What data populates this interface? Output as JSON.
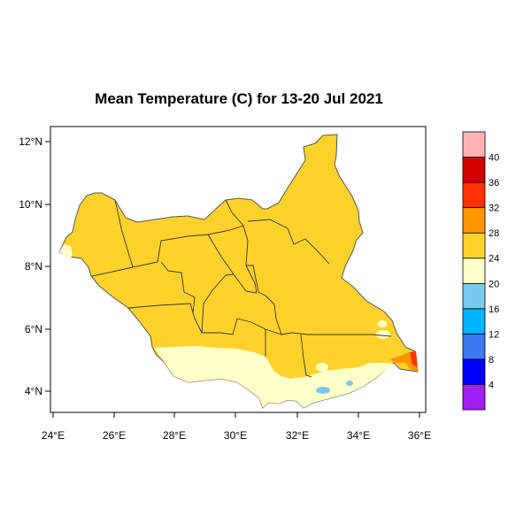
{
  "title": "Mean Temperature (C) for 13-20 Jul 2021",
  "map": {
    "region": "South Sudan",
    "lon_ticks": [
      "24°E",
      "26°E",
      "28°E",
      "30°E",
      "32°E",
      "34°E",
      "36°E"
    ],
    "lat_ticks": [
      "4°N",
      "6°N",
      "8°N",
      "10°N",
      "12°N"
    ],
    "dominant_band": "24-28",
    "south_band": "20-24",
    "southeast_spot_band": "16-20",
    "east_edge_band": "28-32"
  },
  "legend": {
    "labels": [
      "4",
      "8",
      "12",
      "16",
      "20",
      "24",
      "28",
      "32",
      "36",
      "40"
    ],
    "colors": [
      "#a020f0",
      "#0000ff",
      "#3c78f0",
      "#00b4ff",
      "#78c8f0",
      "#ffffc8",
      "#ffd22b",
      "#ff9600",
      "#ff3200",
      "#d20000",
      "#ffb4b4"
    ]
  }
}
